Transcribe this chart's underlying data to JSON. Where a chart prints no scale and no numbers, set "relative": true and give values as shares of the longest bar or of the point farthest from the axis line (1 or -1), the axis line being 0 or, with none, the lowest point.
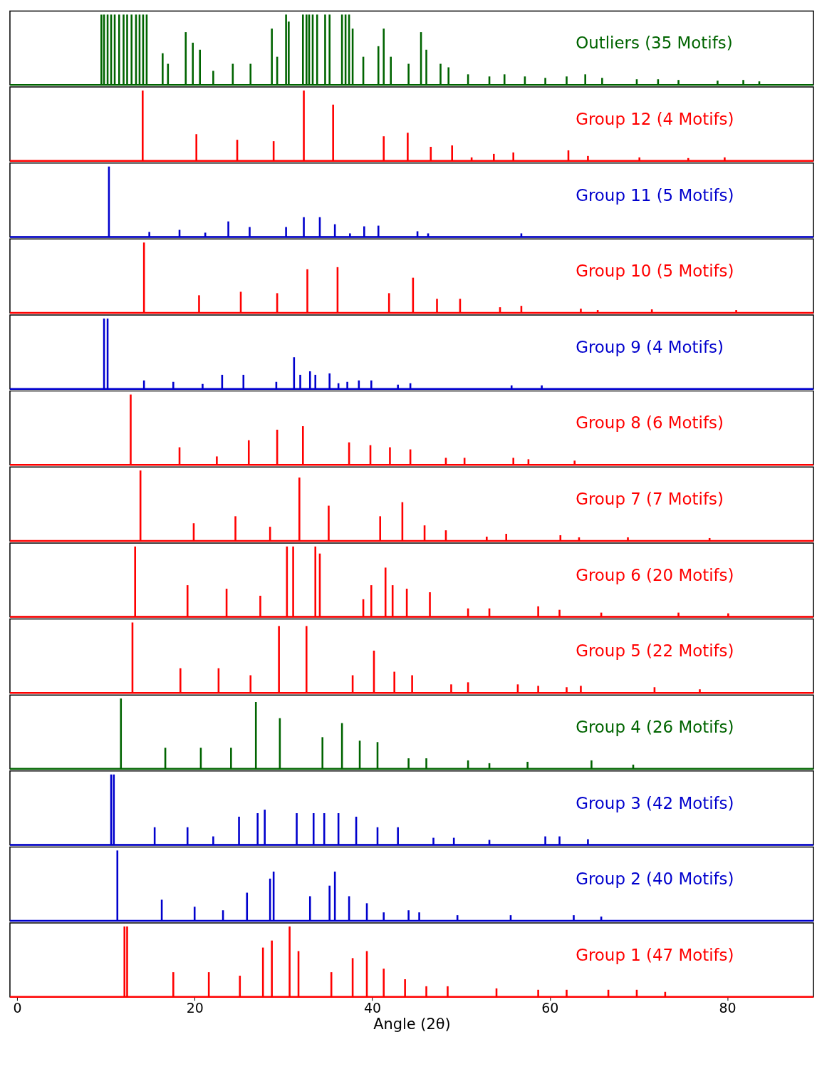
{
  "chart_data": [
    {
      "type": "bar",
      "relative": true,
      "xlim": [
        -0.4,
        89.3
      ],
      "tick_labels": false,
      "series": [
        {
          "name": "Outliers (35 Motifs)",
          "color": "#006400",
          "x": [
            9.5,
            9.8,
            10.2,
            10.6,
            11.0,
            11.5,
            12.0,
            12.4,
            12.9,
            13.4,
            13.8,
            14.2,
            14.6,
            16.4,
            17.0,
            19.0,
            19.8,
            20.6,
            22.1,
            24.3,
            26.3,
            28.7,
            29.3,
            30.3,
            30.6,
            32.2,
            32.6,
            32.9,
            33.3,
            33.8,
            34.7,
            35.2,
            36.6,
            37.0,
            37.4,
            37.8,
            39.0,
            40.7,
            41.3,
            42.1,
            44.1,
            45.5,
            46.1,
            47.7,
            48.6,
            50.8,
            53.2,
            54.9,
            57.2,
            59.5,
            61.9,
            64.0,
            65.9,
            69.8,
            72.2,
            74.5,
            78.9,
            81.8,
            83.6
          ],
          "values": [
            1,
            1,
            1,
            1,
            1,
            1,
            1,
            1,
            1,
            1,
            1,
            1,
            1,
            0.45,
            0.3,
            0.75,
            0.6,
            0.5,
            0.2,
            0.3,
            0.3,
            0.8,
            0.4,
            1,
            0.9,
            1,
            1,
            1,
            1,
            1,
            1,
            1,
            1,
            1,
            1,
            0.8,
            0.4,
            0.55,
            0.8,
            0.4,
            0.3,
            0.75,
            0.5,
            0.3,
            0.25,
            0.15,
            0.12,
            0.15,
            0.12,
            0.1,
            0.12,
            0.15,
            0.1,
            0.08,
            0.08,
            0.07,
            0.06,
            0.07,
            0.05
          ]
        }
      ]
    },
    {
      "type": "bar",
      "relative": true,
      "xlim": [
        -0.4,
        89.3
      ],
      "tick_labels": false,
      "series": [
        {
          "name": "Group 12 (4 Motifs)",
          "color": "#ff0000",
          "x": [
            14.15,
            20.2,
            24.8,
            28.9,
            32.3,
            35.6,
            41.3,
            44.0,
            46.6,
            49.0,
            51.2,
            53.7,
            55.9,
            62.1,
            64.3,
            70.1,
            75.6,
            79.7
          ],
          "values": [
            1,
            0.38,
            0.3,
            0.28,
            1,
            0.8,
            0.35,
            0.4,
            0.2,
            0.22,
            0.05,
            0.1,
            0.12,
            0.15,
            0.07,
            0.05,
            0.04,
            0.05
          ]
        }
      ]
    },
    {
      "type": "bar",
      "relative": true,
      "xlim": [
        -0.4,
        89.3
      ],
      "tick_labels": false,
      "series": [
        {
          "name": "Group 11 (5 Motifs)",
          "color": "#0000cd",
          "x": [
            10.35,
            14.9,
            18.3,
            21.2,
            23.8,
            26.2,
            30.3,
            32.3,
            34.1,
            35.8,
            37.5,
            39.1,
            40.7,
            45.1,
            46.3,
            56.8
          ],
          "values": [
            1,
            0.07,
            0.1,
            0.06,
            0.22,
            0.14,
            0.14,
            0.28,
            0.28,
            0.18,
            0.05,
            0.15,
            0.16,
            0.08,
            0.05,
            0.05
          ]
        }
      ]
    },
    {
      "type": "bar",
      "relative": true,
      "xlim": [
        -0.4,
        89.3
      ],
      "tick_labels": false,
      "series": [
        {
          "name": "Group 10 (5 Motifs)",
          "color": "#ff0000",
          "x": [
            14.3,
            20.5,
            25.2,
            29.3,
            32.7,
            36.1,
            41.9,
            44.6,
            47.3,
            49.9,
            54.4,
            56.8,
            63.5,
            65.4,
            71.5,
            81.0
          ],
          "values": [
            1,
            0.25,
            0.3,
            0.28,
            0.62,
            0.65,
            0.28,
            0.5,
            0.2,
            0.2,
            0.08,
            0.1,
            0.06,
            0.04,
            0.05,
            0.04
          ]
        }
      ]
    },
    {
      "type": "bar",
      "relative": true,
      "xlim": [
        -0.4,
        89.3
      ],
      "tick_labels": false,
      "series": [
        {
          "name": "Group 9 (4 Motifs)",
          "color": "#0000cd",
          "x": [
            9.8,
            10.2,
            14.3,
            17.6,
            20.9,
            23.1,
            25.5,
            29.2,
            31.2,
            31.9,
            33.0,
            33.6,
            35.2,
            36.2,
            37.2,
            38.5,
            39.9,
            42.9,
            44.3,
            55.7,
            59.1
          ],
          "values": [
            1,
            1,
            0.12,
            0.1,
            0.07,
            0.2,
            0.2,
            0.1,
            0.45,
            0.2,
            0.25,
            0.2,
            0.22,
            0.08,
            0.1,
            0.12,
            0.12,
            0.06,
            0.08,
            0.05,
            0.05
          ]
        }
      ]
    },
    {
      "type": "bar",
      "relative": true,
      "xlim": [
        -0.4,
        89.3
      ],
      "tick_labels": false,
      "series": [
        {
          "name": "Group 8 (6 Motifs)",
          "color": "#ff0000",
          "x": [
            12.8,
            18.3,
            22.5,
            26.1,
            29.3,
            32.2,
            37.4,
            39.8,
            42.0,
            44.3,
            48.3,
            50.4,
            55.9,
            57.6,
            62.8
          ],
          "values": [
            1,
            0.25,
            0.12,
            0.35,
            0.5,
            0.55,
            0.32,
            0.28,
            0.25,
            0.22,
            0.1,
            0.1,
            0.1,
            0.08,
            0.06
          ]
        }
      ]
    },
    {
      "type": "bar",
      "relative": true,
      "xlim": [
        -0.4,
        89.3
      ],
      "tick_labels": false,
      "series": [
        {
          "name": "Group 7 (7 Motifs)",
          "color": "#ff0000",
          "x": [
            13.9,
            19.9,
            24.6,
            28.5,
            31.8,
            35.1,
            40.9,
            43.4,
            45.9,
            48.3,
            52.9,
            55.1,
            61.2,
            63.3,
            68.8,
            78.0
          ],
          "values": [
            1,
            0.25,
            0.35,
            0.2,
            0.9,
            0.5,
            0.35,
            0.55,
            0.22,
            0.15,
            0.06,
            0.1,
            0.08,
            0.05,
            0.05,
            0.04
          ]
        }
      ]
    },
    {
      "type": "bar",
      "relative": true,
      "xlim": [
        -0.4,
        89.3
      ],
      "tick_labels": false,
      "series": [
        {
          "name": "Group 6 (20 Motifs)",
          "color": "#ff0000",
          "x": [
            13.3,
            19.2,
            23.6,
            27.4,
            30.4,
            31.1,
            33.6,
            34.1,
            39.0,
            39.9,
            41.5,
            42.3,
            43.9,
            46.5,
            50.8,
            53.2,
            58.7,
            61.1,
            65.8,
            74.5,
            80.1
          ],
          "values": [
            1,
            0.45,
            0.4,
            0.3,
            1,
            1,
            1,
            0.9,
            0.25,
            0.45,
            0.7,
            0.45,
            0.4,
            0.35,
            0.12,
            0.12,
            0.15,
            0.1,
            0.06,
            0.06,
            0.05
          ]
        }
      ]
    },
    {
      "type": "bar",
      "relative": true,
      "xlim": [
        -0.4,
        89.3
      ],
      "tick_labels": false,
      "series": [
        {
          "name": "Group 5 (22 Motifs)",
          "color": "#ff0000",
          "x": [
            13.0,
            18.4,
            22.7,
            26.3,
            29.5,
            32.6,
            37.8,
            40.2,
            42.5,
            44.5,
            48.9,
            50.8,
            56.4,
            58.7,
            61.9,
            63.5,
            71.8,
            76.9
          ],
          "values": [
            1,
            0.35,
            0.35,
            0.25,
            0.95,
            0.95,
            0.25,
            0.6,
            0.3,
            0.25,
            0.12,
            0.15,
            0.12,
            0.1,
            0.08,
            0.1,
            0.08,
            0.05
          ]
        }
      ]
    },
    {
      "type": "bar",
      "relative": true,
      "xlim": [
        -0.4,
        89.3
      ],
      "tick_labels": false,
      "series": [
        {
          "name": "Group 4 (26 Motifs)",
          "color": "#006400",
          "x": [
            11.7,
            16.7,
            20.7,
            24.1,
            26.9,
            29.6,
            34.4,
            36.6,
            38.6,
            40.6,
            44.1,
            46.1,
            50.8,
            53.2,
            57.5,
            64.7,
            69.4
          ],
          "values": [
            1,
            0.3,
            0.3,
            0.3,
            0.95,
            0.72,
            0.45,
            0.65,
            0.4,
            0.38,
            0.15,
            0.15,
            0.12,
            0.08,
            0.1,
            0.12,
            0.06
          ]
        }
      ]
    },
    {
      "type": "bar",
      "relative": true,
      "xlim": [
        -0.4,
        89.3
      ],
      "tick_labels": false,
      "series": [
        {
          "name": "Group 3 (42 Motifs)",
          "color": "#0000cd",
          "x": [
            10.6,
            10.9,
            15.5,
            19.2,
            22.1,
            25.0,
            27.1,
            27.9,
            31.5,
            33.4,
            34.6,
            36.2,
            38.2,
            40.6,
            42.9,
            46.9,
            49.2,
            53.2,
            59.5,
            61.1,
            64.3
          ],
          "values": [
            1,
            1,
            0.25,
            0.25,
            0.12,
            0.4,
            0.45,
            0.5,
            0.45,
            0.45,
            0.45,
            0.45,
            0.4,
            0.25,
            0.25,
            0.1,
            0.1,
            0.07,
            0.12,
            0.12,
            0.08
          ]
        }
      ]
    },
    {
      "type": "bar",
      "relative": true,
      "xlim": [
        -0.4,
        89.3
      ],
      "tick_labels": false,
      "series": [
        {
          "name": "Group 2 (40 Motifs)",
          "color": "#0000cd",
          "x": [
            11.3,
            16.3,
            20.0,
            23.2,
            25.9,
            28.5,
            28.9,
            33.0,
            35.2,
            35.8,
            37.4,
            39.4,
            41.3,
            44.1,
            45.3,
            49.6,
            55.6,
            62.7,
            65.8
          ],
          "values": [
            1,
            0.3,
            0.2,
            0.15,
            0.4,
            0.6,
            0.7,
            0.35,
            0.5,
            0.7,
            0.35,
            0.25,
            0.12,
            0.15,
            0.12,
            0.08,
            0.08,
            0.08,
            0.06
          ]
        }
      ]
    },
    {
      "type": "bar",
      "relative": true,
      "xlim": [
        -0.4,
        89.3
      ],
      "xticks": [
        0,
        20,
        40,
        60,
        80
      ],
      "xlabel": "Angle (2θ)",
      "tick_labels": "x",
      "series": [
        {
          "name": "Group 1 (47 Motifs)",
          "color": "#ff0000",
          "x": [
            12.1,
            12.4,
            17.6,
            21.6,
            25.1,
            27.7,
            28.7,
            30.7,
            31.7,
            35.4,
            37.8,
            39.4,
            41.3,
            43.7,
            46.1,
            48.5,
            54.0,
            58.7,
            61.9,
            66.6,
            69.8,
            73.0
          ],
          "values": [
            1,
            1,
            0.35,
            0.35,
            0.3,
            0.7,
            0.8,
            1,
            0.65,
            0.35,
            0.55,
            0.65,
            0.4,
            0.25,
            0.15,
            0.15,
            0.12,
            0.1,
            0.1,
            0.1,
            0.1,
            0.07
          ]
        }
      ]
    }
  ]
}
